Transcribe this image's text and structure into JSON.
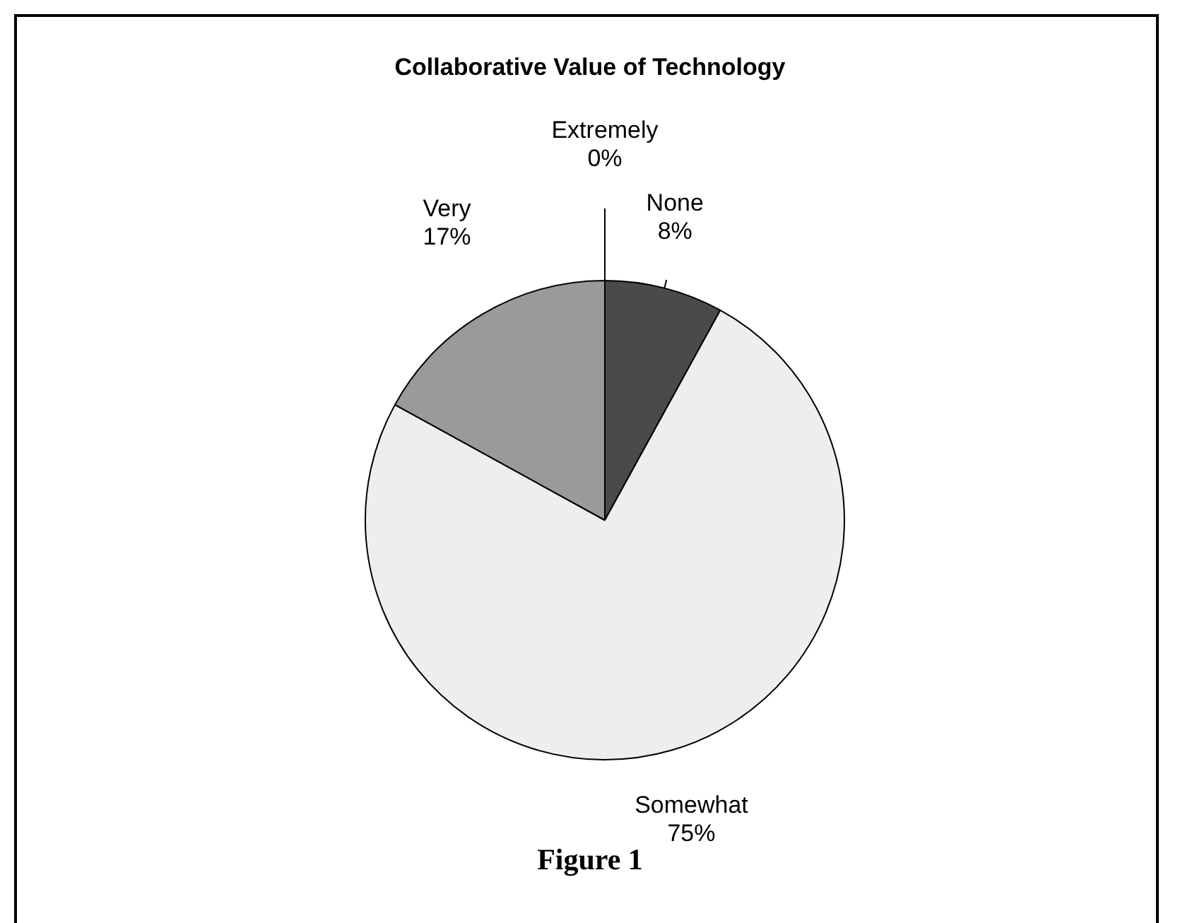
{
  "chart_data": {
    "type": "pie",
    "title": "Collaborative Value of Technology",
    "categories": [
      "None",
      "Somewhat",
      "Very",
      "Extremely"
    ],
    "values": [
      8,
      75,
      17,
      0
    ],
    "colors": [
      "#4a4a4a",
      "#eeeeee",
      "#9a9a9a",
      "#ffffff"
    ],
    "legend": false,
    "value_labels": [
      "8%",
      "75%",
      "17%",
      "0%"
    ],
    "annotations": [
      "Figure 1"
    ]
  }
}
